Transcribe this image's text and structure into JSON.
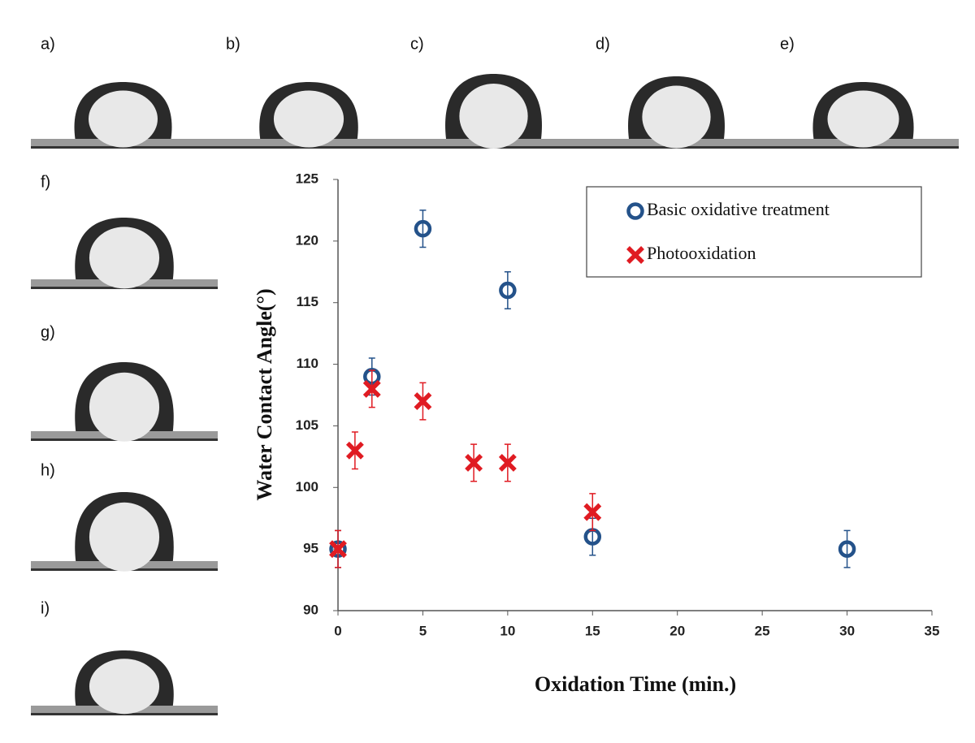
{
  "panel_labels": [
    "a)",
    "b)",
    "c)",
    "d)",
    "e)",
    "f)",
    "g)",
    "h)",
    "i)"
  ],
  "chart_data": {
    "type": "scatter",
    "xlabel": "Oxidation Time (min.)",
    "ylabel": "Water Contact Angle(°)",
    "xlim": [
      0,
      35
    ],
    "xticks": [
      0,
      5,
      10,
      15,
      20,
      25,
      30,
      35
    ],
    "ylim": [
      90,
      125
    ],
    "yticks": [
      90,
      95,
      100,
      105,
      110,
      115,
      120,
      125
    ],
    "grid": false,
    "legend": "upper right",
    "series": [
      {
        "name": "Basic oxidative treatment",
        "color": "#24528a",
        "marker": "circle",
        "x": [
          0,
          2,
          5,
          10,
          15,
          30
        ],
        "values": [
          95,
          109,
          121,
          116,
          96,
          95
        ],
        "errors": [
          1.5,
          1.5,
          1.5,
          1.5,
          1.5,
          1.5
        ]
      },
      {
        "name": "Photooxidation",
        "color": "#e01b22",
        "marker": "cross",
        "x": [
          0,
          1,
          2,
          5,
          8,
          10,
          15
        ],
        "values": [
          95,
          103,
          108,
          107,
          102,
          102,
          98
        ],
        "errors": [
          1.5,
          1.5,
          1.5,
          1.5,
          1.5,
          1.5,
          1.5
        ]
      }
    ]
  }
}
